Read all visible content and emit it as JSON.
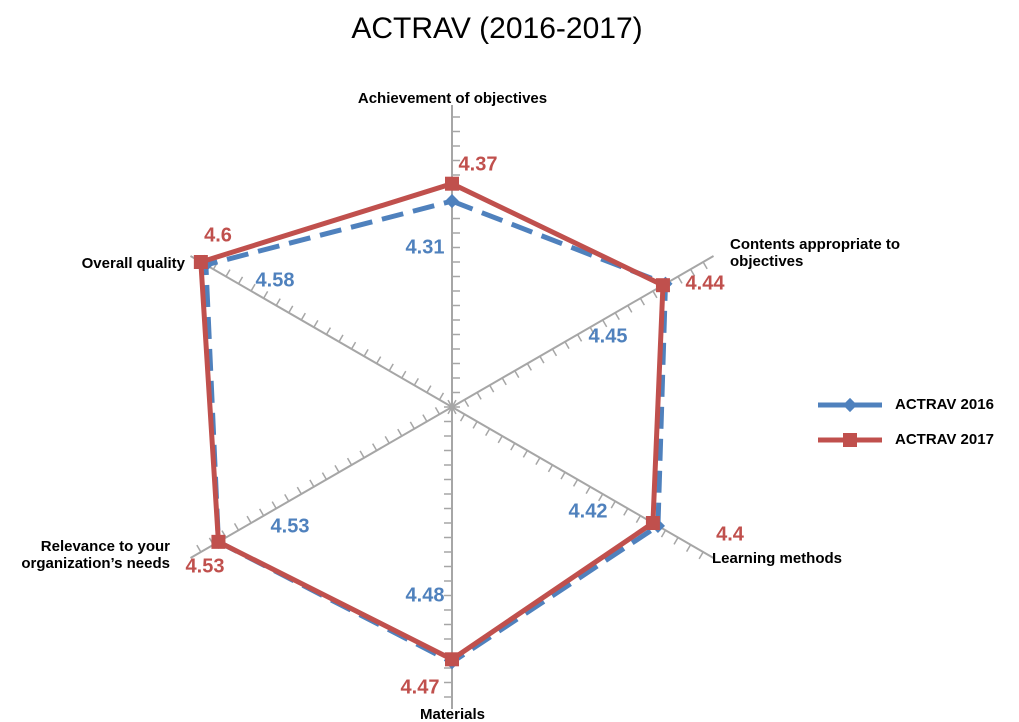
{
  "chart_data": {
    "type": "radar",
    "title": "ACTRAV (2016-2017)",
    "categories": [
      "Achievement of objectives",
      "Contents appropriate to objectives",
      "Learning methods",
      "Materials",
      "Relevance to your organization’s needs",
      "Overall quality"
    ],
    "series": [
      {
        "name": "ACTRAV 2016",
        "color": "#4f81bd",
        "values": [
          4.31,
          4.45,
          4.42,
          4.48,
          4.53,
          4.58
        ]
      },
      {
        "name": "ACTRAV 2017",
        "color": "#c0504d",
        "values": [
          4.37,
          4.44,
          4.4,
          4.47,
          4.53,
          4.6
        ]
      }
    ],
    "rlim": [
      3.6,
      4.6
    ],
    "rticks": [
      3.6,
      3.65,
      3.7,
      3.75,
      3.8,
      3.85,
      3.9,
      3.95,
      4.0,
      4.05,
      4.1,
      4.15,
      4.2,
      4.25,
      4.3,
      4.35,
      4.4,
      4.45,
      4.5,
      4.55,
      4.6
    ],
    "legend": "right"
  }
}
